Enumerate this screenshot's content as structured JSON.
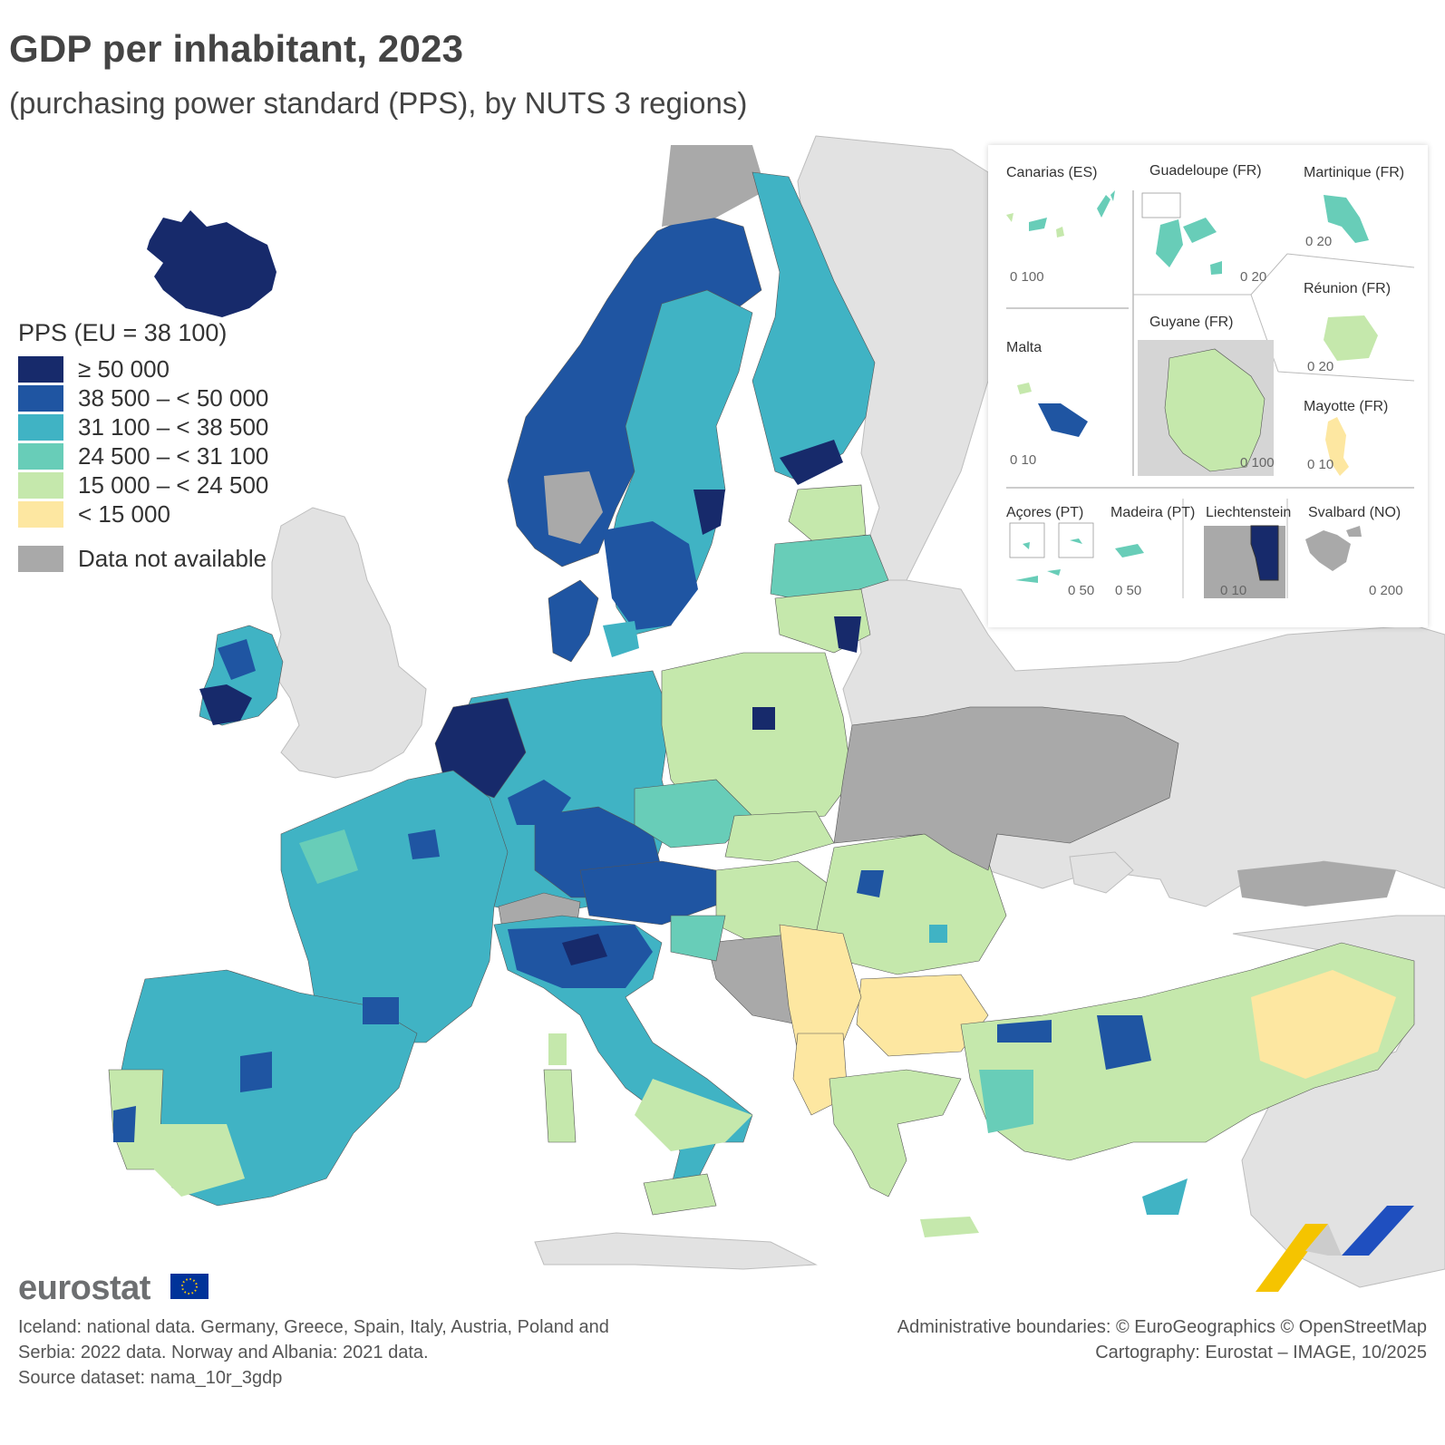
{
  "title": "GDP per inhabitant, 2023",
  "subtitle": "(purchasing power standard (PPS), by NUTS 3 regions)",
  "legend": {
    "title": "PPS (EU = 38 100)",
    "classes": [
      {
        "label": "≥ 50 000",
        "color": "#172a6b"
      },
      {
        "label": "38 500 – < 50 000",
        "color": "#1f55a2"
      },
      {
        "label": "31 100 – < 38 500",
        "color": "#40b3c4"
      },
      {
        "label": "24 500 – < 31 100",
        "color": "#68cdb8"
      },
      {
        "label": "15 000 – < 24 500",
        "color": "#c5e8ac"
      },
      {
        "label": "< 15 000",
        "color": "#fde7a1"
      }
    ],
    "not_available": {
      "label": "Data not available",
      "color": "#a9a9a9"
    }
  },
  "colors": {
    "non_eu_land": "#e2e2e2",
    "sea": "#ffffff",
    "border": "#222222"
  },
  "insets": {
    "canarias": {
      "label": "Canarias (ES)",
      "scale": "0  100"
    },
    "guadeloupe": {
      "label": "Guadeloupe (FR)",
      "scale": "0  20"
    },
    "martinique": {
      "label": "Martinique (FR)",
      "scale": "0  20"
    },
    "reunion": {
      "label": "Réunion (FR)",
      "scale": "0  20"
    },
    "malta": {
      "label": "Malta",
      "scale": "0  10"
    },
    "guyane": {
      "label": "Guyane (FR)",
      "scale": "0   100"
    },
    "mayotte": {
      "label": "Mayotte (FR)",
      "scale": "0 10"
    },
    "acores": {
      "label": "Açores (PT)",
      "scale": "0  50"
    },
    "madeira": {
      "label": "Madeira (PT)",
      "scale": "0     50"
    },
    "liechtenstein": {
      "label": "Liechtenstein",
      "scale": "0  10"
    },
    "svalbard": {
      "label": "Svalbard (NO)",
      "scale": "0    200"
    }
  },
  "logo": {
    "text": "eurostat"
  },
  "notes": {
    "line1": "Iceland: national data. Germany, Greece, Spain, Italy, Austria, Poland and",
    "line2": "Serbia: 2022 data. Norway and Albania: 2021 data.",
    "line3": "Source dataset: nama_10r_3gdp"
  },
  "credits": {
    "line1": "Administrative boundaries: © EuroGeographics © OpenStreetMap",
    "line2": "Cartography: Eurostat – IMAGE, 10/2025"
  }
}
